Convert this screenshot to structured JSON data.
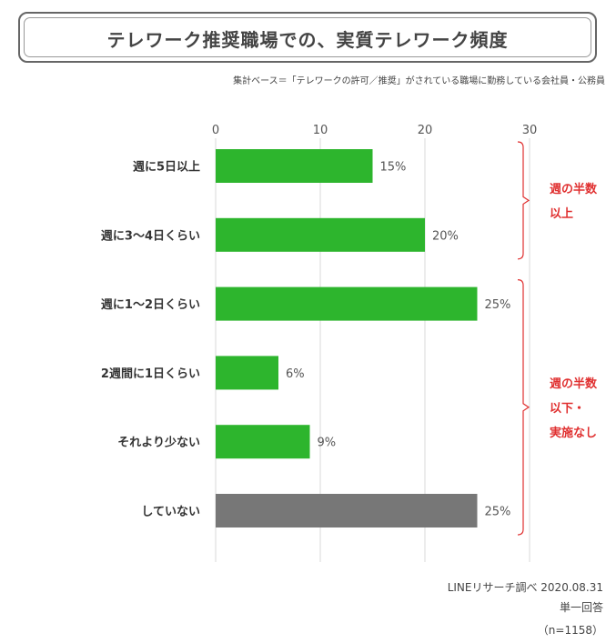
{
  "title": "テレワーク推奨職場での、実質テレワーク頻度",
  "base_note": "集計ベース＝「テレワークの許可／推奨」がされている職場に勤務している会社員・公務員",
  "chart_data": {
    "type": "bar",
    "orientation": "horizontal",
    "categories": [
      "週に5日以上",
      "週に3〜4日くらい",
      "週に1〜2日くらい",
      "2週間に1日くらい",
      "それより少ない",
      "していない"
    ],
    "values": [
      15,
      20,
      25,
      6,
      9,
      25
    ],
    "value_labels": [
      "15%",
      "20%",
      "25%",
      "6%",
      "9%",
      "25%"
    ],
    "bar_colors": [
      "#2db52d",
      "#2db52d",
      "#2db52d",
      "#2db52d",
      "#2db52d",
      "#777777"
    ],
    "xlim": [
      0,
      30
    ],
    "xticks": [
      0,
      10,
      20,
      30
    ],
    "tick_labels": [
      "0",
      "10",
      "20",
      "30"
    ],
    "x_axis_position": "top",
    "grid": true,
    "bracket_color": "#e03030",
    "brackets": [
      {
        "from": 0,
        "to": 1,
        "label": [
          "週の半数",
          "以上"
        ]
      },
      {
        "from": 2,
        "to": 5,
        "label": [
          "週の半数",
          "以下・",
          "実施なし"
        ]
      }
    ]
  },
  "footer": {
    "source": "LINEリサーチ調べ 2020.08.31",
    "answer_type": "単一回答",
    "sample": "（n=1158）"
  }
}
